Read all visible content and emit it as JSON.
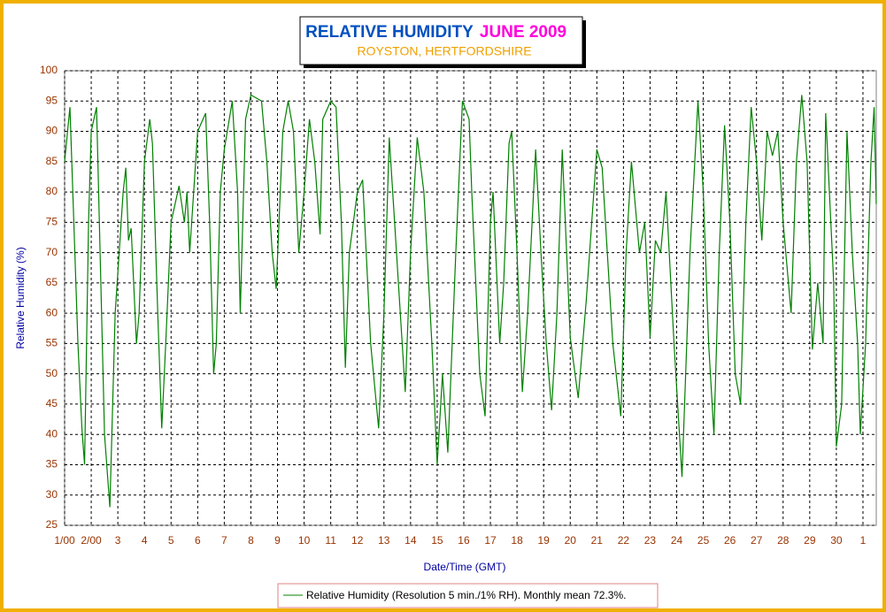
{
  "chart_data": {
    "type": "line",
    "title": "RELATIVE HUMIDITY",
    "title_date": "JUNE 2009",
    "subtitle": "ROYSTON, HERTFORDSHIRE",
    "xlabel": "Date/Time (GMT)",
    "ylabel": "Relative Humidity (%)",
    "x": [
      0,
      0.2,
      0.5,
      0.65,
      0.75,
      0.9,
      1.0,
      1.2,
      1.5,
      1.7,
      1.9,
      2.2,
      2.3,
      2.4,
      2.5,
      2.7,
      2.8,
      3.0,
      3.2,
      3.3,
      3.5,
      3.65,
      3.8,
      4.0,
      4.3,
      4.5,
      4.6,
      4.7,
      5.0,
      5.3,
      5.45,
      5.6,
      5.7,
      5.85,
      6.0,
      6.3,
      6.5,
      6.6,
      6.8,
      7.0,
      7.4,
      7.6,
      7.8,
      7.95,
      8.2,
      8.4,
      8.6,
      8.8,
      9.0,
      9.2,
      9.4,
      9.6,
      9.7,
      10.0,
      10.2,
      10.4,
      10.55,
      10.7,
      11.0,
      11.2,
      11.5,
      11.8,
      12.0,
      12.2,
      12.4,
      12.8,
      13.0,
      13.25,
      13.5,
      13.8,
      14.0,
      14.2,
      14.4,
      14.7,
      14.95,
      15.2,
      15.3,
      15.6,
      15.8,
      16.0,
      16.1,
      16.35,
      16.5,
      16.7,
      16.8,
      17.0,
      17.2,
      17.4,
      17.7,
      17.9,
      18.1,
      18.3,
      18.5,
      18.7,
      19.0,
      19.3,
      19.6,
      20.0,
      20.2,
      20.6,
      20.9,
      21.1,
      21.3,
      21.6,
      21.8,
      22.0,
      22.2,
      22.4,
      22.6,
      22.9,
      23.2,
      23.5,
      23.8,
      24.0,
      24.2,
      24.4,
      24.6,
      24.8,
      25.0,
      25.2,
      25.4,
      25.6,
      25.8,
      26.0,
      26.2,
      26.4,
      26.6,
      26.8,
      27.0,
      27.3,
      27.5,
      27.7,
      27.9,
      28.1,
      28.3,
      28.5,
      28.6,
      28.9,
      29.0,
      29.2,
      29.4,
      29.6,
      29.8,
      29.9,
      30.1,
      30.3,
      30.42,
      30.5
    ],
    "series": [
      {
        "name": "Relative Humidity (Resolution 5 min./1% RH). Monthly mean 72.3%.",
        "color": "#008000",
        "values": [
          85,
          94,
          55,
          41,
          35,
          75,
          90,
          94,
          40,
          28,
          60,
          80,
          84,
          72,
          74,
          55,
          60,
          85,
          92,
          88,
          60,
          41,
          55,
          75,
          81,
          75,
          80,
          70,
          90,
          93,
          75,
          50,
          55,
          80,
          87,
          95,
          80,
          60,
          92,
          96,
          95,
          85,
          70,
          64,
          90,
          95,
          90,
          70,
          80,
          92,
          85,
          73,
          92,
          95,
          94,
          75,
          51,
          70,
          80,
          82,
          55,
          41,
          60,
          89,
          75,
          47,
          70,
          89,
          80,
          55,
          35,
          50,
          37,
          70,
          95,
          92,
          80,
          50,
          43,
          75,
          80,
          55,
          65,
          88,
          90,
          70,
          47,
          60,
          87,
          70,
          55,
          44,
          60,
          87,
          56,
          46,
          62,
          87,
          84,
          55,
          43,
          70,
          85,
          70,
          75,
          56,
          72,
          70,
          80,
          55,
          33,
          70,
          95,
          80,
          55,
          40,
          70,
          91,
          75,
          50,
          45,
          75,
          94,
          85,
          72,
          90,
          86,
          90,
          75,
          60,
          85,
          96,
          85,
          54,
          65,
          55,
          93,
          65,
          38,
          45,
          90,
          70,
          55,
          40,
          55,
          85,
          94,
          78
        ]
      }
    ],
    "xlim": [
      0,
      30.5
    ],
    "xticks": [
      {
        "value": 0,
        "label": "1/00"
      },
      {
        "value": 1,
        "label": "2/00"
      },
      {
        "value": 2,
        "label": "3"
      },
      {
        "value": 3,
        "label": "4"
      },
      {
        "value": 4,
        "label": "5"
      },
      {
        "value": 5,
        "label": "6"
      },
      {
        "value": 6,
        "label": "7"
      },
      {
        "value": 7,
        "label": "8"
      },
      {
        "value": 8,
        "label": "9"
      },
      {
        "value": 9,
        "label": "10"
      },
      {
        "value": 10,
        "label": "11"
      },
      {
        "value": 11,
        "label": "12"
      },
      {
        "value": 12,
        "label": "13"
      },
      {
        "value": 13,
        "label": "14"
      },
      {
        "value": 14,
        "label": "15"
      },
      {
        "value": 15,
        "label": "16"
      },
      {
        "value": 16,
        "label": "17"
      },
      {
        "value": 17,
        "label": "18"
      },
      {
        "value": 18,
        "label": "19"
      },
      {
        "value": 19,
        "label": "20"
      },
      {
        "value": 20,
        "label": "21"
      },
      {
        "value": 21,
        "label": "22"
      },
      {
        "value": 22,
        "label": "23"
      },
      {
        "value": 23,
        "label": "24"
      },
      {
        "value": 24,
        "label": "25"
      },
      {
        "value": 25,
        "label": "26"
      },
      {
        "value": 26,
        "label": "27"
      },
      {
        "value": 27,
        "label": "28"
      },
      {
        "value": 28,
        "label": "29"
      },
      {
        "value": 29,
        "label": "30"
      },
      {
        "value": 30,
        "label": "1"
      }
    ],
    "ylim": [
      25,
      100
    ],
    "yticks": [
      25,
      30,
      35,
      40,
      45,
      50,
      55,
      60,
      65,
      70,
      75,
      80,
      85,
      90,
      95,
      100
    ],
    "grid": true
  }
}
